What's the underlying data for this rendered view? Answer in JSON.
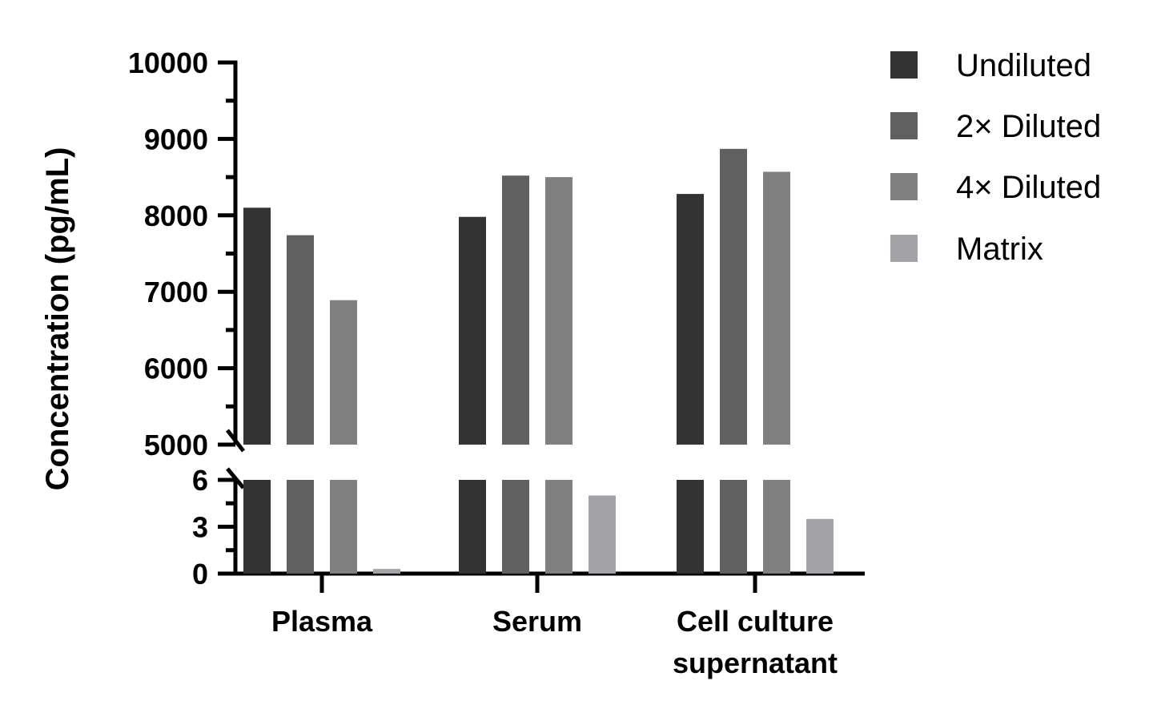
{
  "chart_data": {
    "type": "bar",
    "title": "",
    "xlabel": "",
    "ylabel": "Concentration (pg/mL)",
    "categories": [
      [
        "Plasma"
      ],
      [
        "Serum"
      ],
      [
        "Cell culture",
        "supernatant"
      ]
    ],
    "series": [
      {
        "name": "Undiluted",
        "color": "#333333",
        "values": [
          8100,
          7980,
          8280
        ]
      },
      {
        "name": "2× Diluted",
        "color": "#606060",
        "values": [
          7740,
          8520,
          8870
        ]
      },
      {
        "name": "4× Diluted",
        "color": "#808080",
        "values": [
          6890,
          8500,
          8570
        ]
      },
      {
        "name": "Matrix",
        "color": "#a3a3a7",
        "values": [
          0.3,
          5.0,
          3.5
        ]
      }
    ],
    "y_axis_broken": true,
    "y_segments": [
      {
        "range": [
          0,
          6
        ],
        "ticks": [
          0,
          3,
          6
        ],
        "tick_labels": [
          "0",
          "3",
          "6"
        ]
      },
      {
        "range": [
          5000,
          10000
        ],
        "ticks": [
          5000,
          6000,
          7000,
          8000,
          9000,
          10000
        ],
        "tick_labels": [
          "5000",
          "6000",
          "7000",
          "8000",
          "9000",
          "10000"
        ]
      }
    ],
    "grid": false,
    "legend_position": "top-right"
  }
}
